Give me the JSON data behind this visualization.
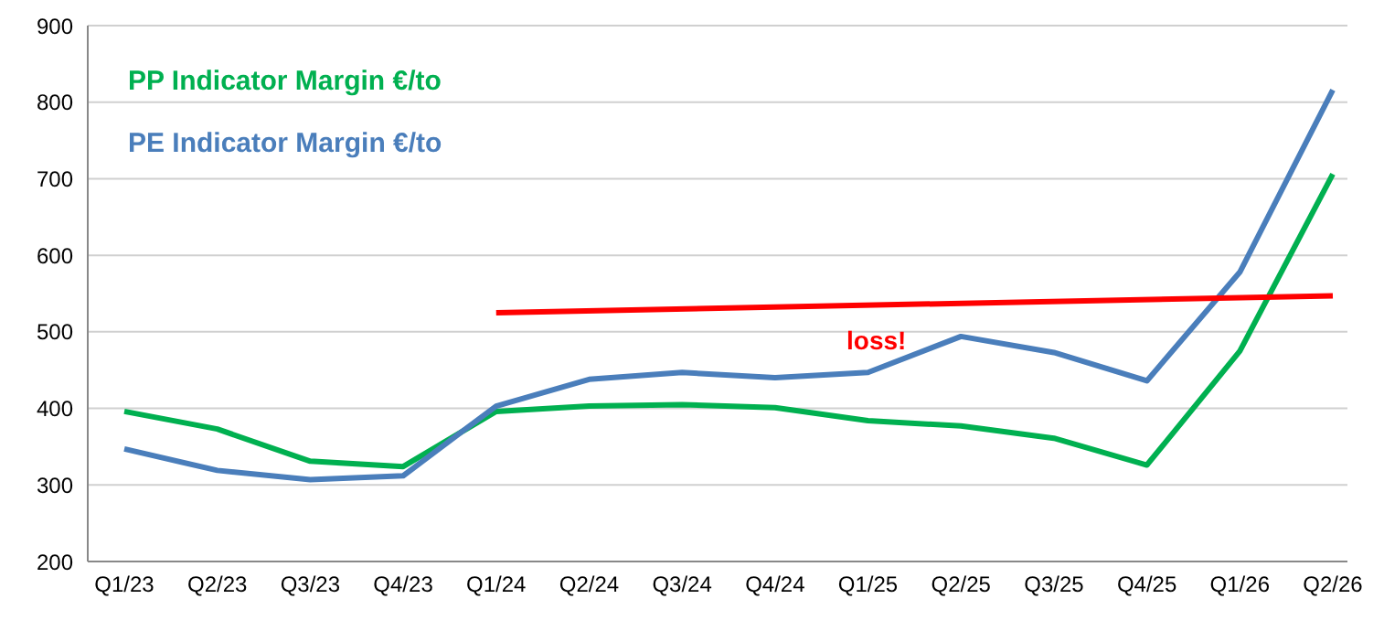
{
  "chart_data": {
    "type": "line",
    "categories": [
      "Q1/23",
      "Q2/23",
      "Q3/23",
      "Q4/23",
      "Q1/24",
      "Q2/24",
      "Q3/24",
      "Q4/24",
      "Q1/25",
      "Q2/25",
      "Q3/25",
      "Q4/25",
      "Q1/26",
      "Q2/26"
    ],
    "series": [
      {
        "name": "PP Indicator Margin €/to",
        "color": "#00b050",
        "values": [
          396,
          373,
          331,
          324,
          396,
          403,
          405,
          401,
          384,
          377,
          361,
          326,
          475,
          706
        ]
      },
      {
        "name": "PE Indicator Margin €/to",
        "color": "#4a7ebb",
        "values": [
          347,
          319,
          307,
          312,
          403,
          438,
          447,
          440,
          447,
          494,
          473,
          436,
          578,
          816
        ]
      },
      {
        "color": "#ff0000",
        "values": [
          null,
          null,
          null,
          null,
          525,
          null,
          null,
          null,
          null,
          null,
          null,
          null,
          null,
          547
        ]
      }
    ],
    "ylim": [
      200,
      900
    ],
    "yticks": [
      200,
      300,
      400,
      500,
      600,
      700,
      800,
      900
    ],
    "grid": "y",
    "legend": "top left",
    "marker": "none",
    "line_style": "solid",
    "annotations": [
      "loss!"
    ]
  }
}
